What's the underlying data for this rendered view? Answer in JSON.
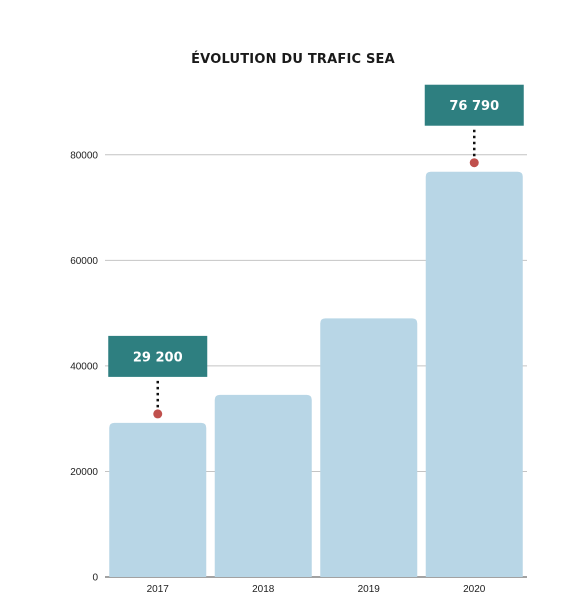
{
  "chart_data": {
    "type": "bar",
    "title": "ÉVOLUTION DU TRAFIC SEA",
    "xlabel": "",
    "ylabel": "",
    "categories": [
      "2017",
      "2018",
      "2019",
      "2020"
    ],
    "values": [
      29200,
      34500,
      49000,
      76790
    ],
    "ylim": [
      0,
      90000
    ],
    "yticks": [
      0,
      20000,
      40000,
      60000,
      80000
    ],
    "ytick_labels": [
      "0",
      "20000",
      "40000",
      "60000",
      "80000"
    ],
    "grid": true,
    "annotations": [
      {
        "category": "2017",
        "label": "29 200",
        "value": 29200
      },
      {
        "category": "2020",
        "label": "76 790",
        "value": 76790
      }
    ],
    "colors": {
      "bar": "#b8d6e6",
      "callout": "#2e7f80",
      "marker": "#c0504d",
      "grid": "#c4c4c4",
      "axis": "#444444"
    }
  }
}
